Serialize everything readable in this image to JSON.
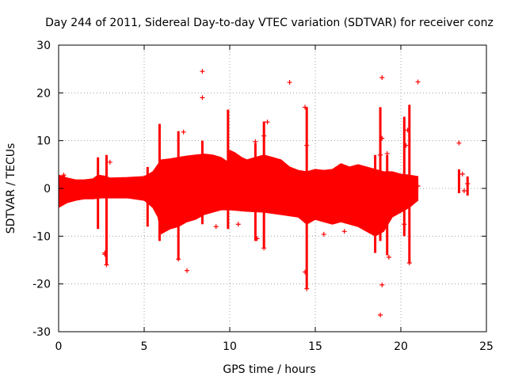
{
  "chart_data": {
    "type": "scatter",
    "title": "Day 244 of 2011, Sidereal Day-to-day VTEC variation (SDTVAR) for receiver conz",
    "xlabel": "GPS time / hours",
    "ylabel": "SDTVAR / TECUs",
    "xlim": [
      0,
      25
    ],
    "ylim": [
      -30,
      30
    ],
    "x_ticks": [
      0,
      5,
      10,
      15,
      20,
      25
    ],
    "y_ticks": [
      -30,
      -20,
      -10,
      0,
      10,
      20,
      30
    ],
    "x_tick_labels": [
      "0",
      "5",
      "10",
      "15",
      "20",
      "25"
    ],
    "y_tick_labels": [
      "-30",
      "-20",
      "-10",
      "0",
      "10",
      "20",
      "30"
    ],
    "grid": true,
    "marker": "+",
    "color": "#ff0000",
    "band_upper": [
      [
        0.0,
        2.8
      ],
      [
        0.5,
        2.2
      ],
      [
        1.0,
        1.8
      ],
      [
        1.5,
        1.8
      ],
      [
        2.0,
        2.0
      ],
      [
        2.3,
        2.8
      ],
      [
        2.7,
        2.6
      ],
      [
        3.0,
        2.2
      ],
      [
        4.0,
        2.3
      ],
      [
        5.0,
        2.5
      ],
      [
        5.5,
        3.5
      ],
      [
        5.8,
        5.0
      ],
      [
        6.0,
        6.0
      ],
      [
        6.5,
        6.2
      ],
      [
        7.0,
        6.5
      ],
      [
        7.5,
        6.8
      ],
      [
        8.0,
        7.0
      ],
      [
        8.5,
        7.2
      ],
      [
        9.0,
        7.0
      ],
      [
        9.5,
        6.5
      ],
      [
        9.9,
        5.5
      ],
      [
        10.0,
        8.0
      ],
      [
        10.3,
        7.5
      ],
      [
        10.7,
        6.5
      ],
      [
        11.0,
        6.0
      ],
      [
        11.5,
        6.5
      ],
      [
        12.0,
        7.0
      ],
      [
        12.5,
        6.5
      ],
      [
        13.0,
        6.0
      ],
      [
        13.5,
        4.5
      ],
      [
        14.0,
        3.8
      ],
      [
        14.5,
        3.5
      ],
      [
        15.0,
        4.0
      ],
      [
        15.5,
        3.8
      ],
      [
        16.0,
        4.0
      ],
      [
        16.5,
        5.2
      ],
      [
        17.0,
        4.5
      ],
      [
        17.5,
        5.0
      ],
      [
        18.0,
        4.5
      ],
      [
        18.5,
        4.0
      ],
      [
        19.0,
        3.5
      ],
      [
        19.5,
        3.5
      ],
      [
        20.0,
        3.0
      ],
      [
        20.5,
        2.8
      ],
      [
        21.0,
        2.5
      ]
    ],
    "band_lower": [
      [
        0.0,
        -4.0
      ],
      [
        0.5,
        -3.0
      ],
      [
        1.0,
        -2.5
      ],
      [
        1.5,
        -2.2
      ],
      [
        2.0,
        -2.2
      ],
      [
        2.5,
        -2.0
      ],
      [
        3.0,
        -2.0
      ],
      [
        4.0,
        -2.0
      ],
      [
        5.0,
        -2.5
      ],
      [
        5.5,
        -4.0
      ],
      [
        5.8,
        -6.0
      ],
      [
        6.0,
        -9.5
      ],
      [
        6.5,
        -8.5
      ],
      [
        7.0,
        -8.0
      ],
      [
        7.5,
        -7.0
      ],
      [
        8.0,
        -6.5
      ],
      [
        8.5,
        -5.5
      ],
      [
        9.0,
        -5.0
      ],
      [
        9.5,
        -4.5
      ],
      [
        10.0,
        -4.5
      ],
      [
        11.0,
        -4.8
      ],
      [
        12.0,
        -5.0
      ],
      [
        13.0,
        -5.5
      ],
      [
        14.0,
        -6.0
      ],
      [
        14.5,
        -7.5
      ],
      [
        15.0,
        -6.5
      ],
      [
        15.5,
        -7.0
      ],
      [
        16.0,
        -7.5
      ],
      [
        16.5,
        -7.0
      ],
      [
        17.0,
        -7.5
      ],
      [
        17.5,
        -8.0
      ],
      [
        18.0,
        -9.0
      ],
      [
        18.5,
        -10.0
      ],
      [
        19.0,
        -9.0
      ],
      [
        19.5,
        -6.0
      ],
      [
        20.0,
        -5.0
      ],
      [
        20.5,
        -4.0
      ],
      [
        21.0,
        -2.5
      ]
    ],
    "spikes": [
      [
        0.3,
        -0.5,
        2.8
      ],
      [
        2.3,
        -8.5,
        6.5
      ],
      [
        2.8,
        -16.0,
        7.0
      ],
      [
        5.2,
        -8.0,
        4.5
      ],
      [
        5.9,
        -11.0,
        13.5
      ],
      [
        7.0,
        -15.0,
        12.0
      ],
      [
        8.4,
        -7.5,
        10.0
      ],
      [
        9.9,
        -8.5,
        16.5
      ],
      [
        11.5,
        -11.0,
        9.5
      ],
      [
        12.0,
        -12.5,
        14.0
      ],
      [
        14.5,
        -21.0,
        17.0
      ],
      [
        18.5,
        -13.5,
        7.0
      ],
      [
        18.8,
        -11.0,
        17.0
      ],
      [
        19.2,
        -14.0,
        7.0
      ],
      [
        20.2,
        -10.0,
        15.0
      ],
      [
        20.5,
        -15.5,
        17.5
      ],
      [
        23.4,
        -1.0,
        4.0
      ],
      [
        23.9,
        -1.5,
        2.5
      ]
    ],
    "scattered_points": [
      [
        8.4,
        24.5
      ],
      [
        8.4,
        19.0
      ],
      [
        13.5,
        22.2
      ],
      [
        14.4,
        17.0
      ],
      [
        18.9,
        23.2
      ],
      [
        21.0,
        22.3
      ],
      [
        23.4,
        9.5
      ],
      [
        18.8,
        -26.5
      ],
      [
        18.9,
        -20.2
      ],
      [
        14.5,
        -21.0
      ],
      [
        7.5,
        -17.2
      ],
      [
        2.8,
        -16.0
      ],
      [
        20.5,
        -15.6
      ],
      [
        14.4,
        -17.5
      ],
      [
        2.7,
        -13.5
      ],
      [
        2.7,
        -13.8
      ],
      [
        7.0,
        -14.8
      ],
      [
        19.3,
        -14.4
      ],
      [
        12.0,
        -12.5
      ],
      [
        15.5,
        -9.6
      ],
      [
        20.2,
        -7.5
      ],
      [
        11.5,
        9.8
      ],
      [
        12.2,
        13.9
      ],
      [
        12.0,
        11.0
      ],
      [
        14.5,
        9.0
      ],
      [
        18.9,
        10.5
      ],
      [
        18.8,
        7.0
      ],
      [
        19.2,
        7.3
      ],
      [
        0.3,
        2.8
      ],
      [
        3.0,
        5.5
      ],
      [
        20.4,
        12.2
      ],
      [
        20.3,
        9.0
      ],
      [
        10.5,
        -7.5
      ],
      [
        11.6,
        -10.5
      ],
      [
        16.7,
        -9.0
      ],
      [
        23.6,
        3.0
      ],
      [
        23.7,
        -0.5
      ],
      [
        23.9,
        1.0
      ],
      [
        21.0,
        0.5
      ],
      [
        19.7,
        0.2
      ],
      [
        9.2,
        -8.0
      ],
      [
        7.3,
        11.8
      ]
    ]
  }
}
